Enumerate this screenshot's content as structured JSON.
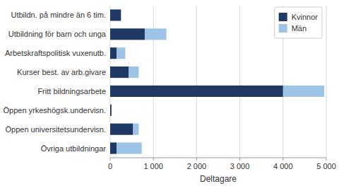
{
  "chart_data": {
    "type": "bar",
    "orientation": "horizontal",
    "stacked": true,
    "categories": [
      "Utbildn. på mindre än 6 tim.",
      "Utbildning för barn och unga",
      "Arbetskraftspolitisk vuxenutb.",
      "Kurser best. av arb.givare",
      "Fritt bildningsarbete",
      "Öppen yrkeshögsk.undervisn.",
      "Öppen universitetsundervisn.",
      "Övriga utbildningar"
    ],
    "series": [
      {
        "name": "Kvinnor",
        "color": "#1F3864",
        "values": [
          250,
          800,
          150,
          430,
          4000,
          30,
          530,
          150
        ]
      },
      {
        "name": "Män",
        "color": "#9DC3E6",
        "values": [
          0,
          500,
          200,
          230,
          950,
          0,
          130,
          580
        ]
      }
    ],
    "xlabel": "Deltagare",
    "xlim": [
      0,
      5000
    ],
    "xticks": [
      0,
      {
        "value": 1000,
        "label": "1 000"
      },
      {
        "value": 2000,
        "label": "2 000"
      },
      {
        "value": 3000,
        "label": "3 000"
      },
      {
        "value": 4000,
        "label": "4 000"
      },
      {
        "value": 5000,
        "label": "5 000"
      }
    ],
    "grid": true,
    "legend": "upper right"
  }
}
